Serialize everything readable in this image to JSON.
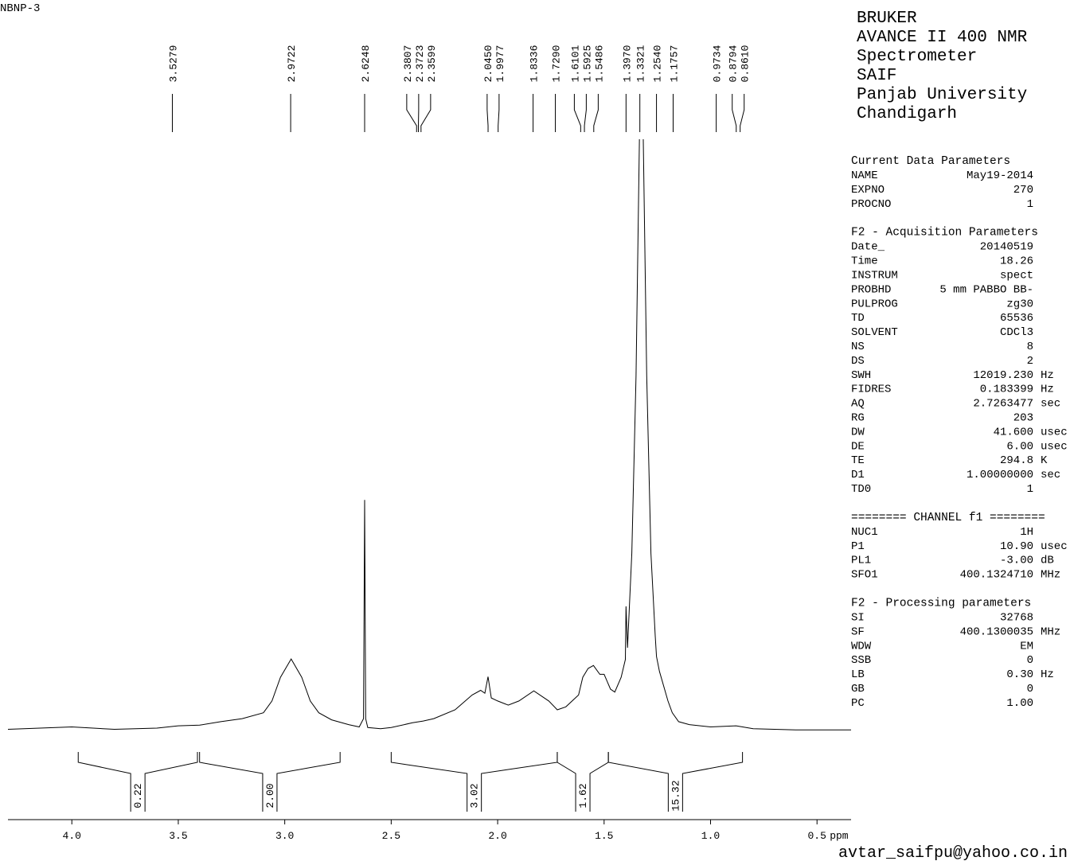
{
  "sample": "NBNP-3",
  "chart_data": {
    "type": "nmr",
    "xlabel": "ppm",
    "xlim": [
      4.3,
      0.34
    ],
    "ylim": [
      0,
      100
    ],
    "xticks": [
      {
        "value": 4.0,
        "label": "4.0"
      },
      {
        "value": 3.5,
        "label": "3.5"
      },
      {
        "value": 3.0,
        "label": "3.0"
      },
      {
        "value": 2.5,
        "label": "2.5"
      },
      {
        "value": 2.0,
        "label": "2.0"
      },
      {
        "value": 1.5,
        "label": "1.5"
      },
      {
        "value": 1.0,
        "label": "1.0"
      },
      0.5
    ],
    "color": "#000000",
    "x": [
      4.3,
      4.0,
      3.8,
      3.6,
      3.5,
      3.4,
      3.3,
      3.2,
      3.1,
      3.06,
      3.02,
      2.97,
      2.92,
      2.88,
      2.84,
      2.78,
      2.7,
      2.65,
      2.63,
      2.6248,
      2.62,
      2.61,
      2.55,
      2.5,
      2.4,
      2.35,
      2.3,
      2.2,
      2.12,
      2.08,
      2.06,
      2.045,
      2.03,
      2.0,
      1.95,
      1.9,
      1.83,
      1.76,
      1.72,
      1.68,
      1.62,
      1.6,
      1.575,
      1.55,
      1.52,
      1.5,
      1.47,
      1.45,
      1.42,
      1.4,
      1.397,
      1.39,
      1.37,
      1.35,
      1.33,
      1.32,
      1.3,
      1.28,
      1.26,
      1.254,
      1.24,
      1.2,
      1.18,
      1.15,
      1.1,
      1.0,
      0.88,
      0.8,
      0.6,
      0.34
    ],
    "values": [
      0.2,
      0.6,
      0.2,
      0.4,
      0.8,
      0.9,
      1.5,
      2,
      3,
      5,
      9,
      12.1,
      9,
      5,
      3,
      1.8,
      1.0,
      0.6,
      2,
      39,
      2,
      0.5,
      0.3,
      0.5,
      1.3,
      1.6,
      2,
      3.5,
      6,
      6.8,
      6.3,
      9.1,
      5.5,
      5,
      4.3,
      5,
      6.7,
      5,
      3.5,
      4,
      6,
      9,
      10.5,
      11,
      9.5,
      9.5,
      7,
      6.5,
      9,
      12,
      21,
      14,
      30,
      60,
      110,
      110,
      60,
      30,
      16,
      12.5,
      10,
      5,
      3,
      1.5,
      1,
      0.6,
      0.8,
      0.3,
      0.1,
      0.1
    ],
    "peaks": [
      {
        "value": 3.5279,
        "label": "3.5279"
      },
      {
        "value": 2.9722,
        "label": "2.9722"
      },
      {
        "value": 2.6248,
        "label": "2.6248"
      },
      {
        "value": 2.3807,
        "label": "2.3807"
      },
      {
        "value": 2.3723,
        "label": "2.3723"
      },
      {
        "value": 2.3599,
        "label": "2.3599"
      },
      {
        "value": 2.045,
        "label": "2.0450"
      },
      {
        "value": 1.9977,
        "label": "1.9977"
      },
      {
        "value": 1.8336,
        "label": "1.8336"
      },
      {
        "value": 1.729,
        "label": "1.7290"
      },
      {
        "value": 1.6101,
        "label": "1.6101"
      },
      {
        "value": 1.5925,
        "label": "1.5925"
      },
      {
        "value": 1.5486,
        "label": "1.5486"
      },
      {
        "value": 1.397,
        "label": "1.3970"
      },
      {
        "value": 1.3321,
        "label": "1.3321"
      },
      {
        "value": 1.254,
        "label": "1.2540"
      },
      {
        "value": 1.1757,
        "label": "1.1757"
      },
      {
        "value": 0.9734,
        "label": "0.9734"
      },
      {
        "value": 0.8794,
        "label": "0.8794"
      },
      {
        "value": 0.861,
        "label": "0.8610"
      }
    ],
    "integrals": [
      {
        "range": [
          3.97,
          3.41
        ],
        "value": 0.22,
        "label": "0.22"
      },
      {
        "range": [
          3.4,
          2.74
        ],
        "value": 2,
        "label": "2.00"
      },
      {
        "range": [
          2.5,
          1.72
        ],
        "value": 3.02,
        "label": "3.02"
      },
      {
        "range": [
          1.72,
          1.48
        ],
        "value": 1.62,
        "label": "1.62"
      },
      {
        "range": [
          1.48,
          0.85
        ],
        "value": 15.32,
        "label": "15.32"
      }
    ]
  },
  "info": {
    "header": [
      "BRUKER",
      "AVANCE II 400 NMR",
      "Spectrometer",
      "SAIF",
      "Panjab University",
      "Chandigarh"
    ],
    "sections": [
      {
        "title": "Current Data Parameters",
        "rows": [
          [
            "NAME",
            "May19-2014"
          ],
          [
            "EXPNO",
            "270"
          ],
          [
            "PROCNO",
            "1"
          ]
        ]
      },
      {
        "title": "F2 - Acquisition Parameters",
        "rows": [
          [
            "Date_",
            "20140519"
          ],
          [
            "Time",
            "18.26"
          ],
          [
            "INSTRUM",
            "spect"
          ],
          [
            "PROBHD",
            "5 mm PABBO BB-"
          ],
          [
            "PULPROG",
            "zg30"
          ],
          [
            "TD",
            "65536"
          ],
          [
            "SOLVENT",
            "CDCl3"
          ],
          [
            "NS",
            "8"
          ],
          [
            "DS",
            "2"
          ],
          [
            "SWH",
            "12019.230",
            "Hz"
          ],
          [
            "FIDRES",
            "0.183399",
            "Hz"
          ],
          [
            "AQ",
            "2.7263477",
            "sec"
          ],
          [
            "RG",
            "203"
          ],
          [
            "DW",
            "41.600",
            "usec"
          ],
          [
            "DE",
            "6.00",
            "usec"
          ],
          [
            "TE",
            "294.8",
            "K"
          ],
          [
            "D1",
            "1.00000000",
            "sec"
          ],
          [
            "TD0",
            "1"
          ]
        ]
      },
      {
        "title": "======== CHANNEL f1 ========",
        "rows": [
          [
            "NUC1",
            "1H"
          ],
          [
            "P1",
            "10.90",
            "usec"
          ],
          [
            "PL1",
            "-3.00",
            "dB"
          ],
          [
            "SFO1",
            "400.1324710",
            "MHz"
          ]
        ]
      },
      {
        "title": "F2 - Processing parameters",
        "rows": [
          [
            "SI",
            "32768"
          ],
          [
            "SF",
            "400.1300035",
            "MHz"
          ],
          [
            "WDW",
            "EM"
          ],
          [
            "SSB",
            "0"
          ],
          [
            "LB",
            "0.30",
            "Hz"
          ],
          [
            "GB",
            "0"
          ],
          [
            "PC",
            "1.00"
          ]
        ]
      }
    ]
  },
  "contact": "avtar_saifpu@yahoo.co.in"
}
